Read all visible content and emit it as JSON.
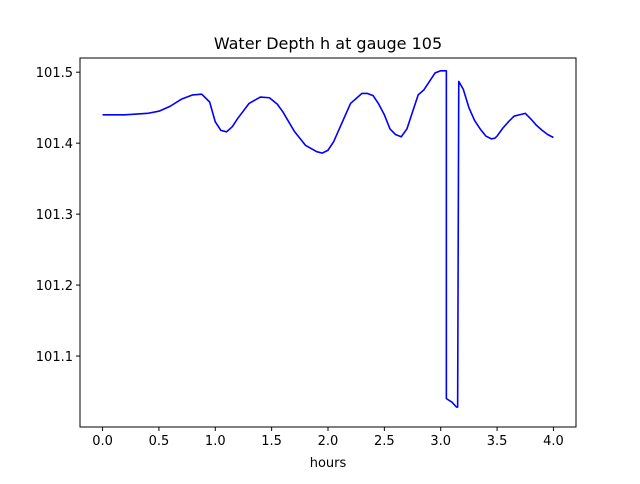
{
  "chart_data": {
    "type": "line",
    "title": "Water Depth h at gauge 105",
    "xlabel": "hours",
    "ylabel": "",
    "xlim": [
      -0.2,
      4.2
    ],
    "ylim": [
      101.0,
      101.52
    ],
    "xticks": [
      0.0,
      0.5,
      1.0,
      1.5,
      2.0,
      2.5,
      3.0,
      3.5,
      4.0
    ],
    "xtick_labels": [
      "0.0",
      "0.5",
      "1.0",
      "1.5",
      "2.0",
      "2.5",
      "3.0",
      "3.5",
      "4.0"
    ],
    "yticks": [
      101.1,
      101.2,
      101.3,
      101.4,
      101.5
    ],
    "ytick_labels": [
      "101.1",
      "101.2",
      "101.3",
      "101.4",
      "101.5"
    ],
    "grid": false,
    "legend": "none",
    "series": [
      {
        "color": "#0000ff",
        "x": [
          0.0,
          0.2,
          0.4,
          0.5,
          0.6,
          0.7,
          0.8,
          0.88,
          0.95,
          1.0,
          1.05,
          1.1,
          1.15,
          1.2,
          1.3,
          1.4,
          1.48,
          1.55,
          1.6,
          1.7,
          1.8,
          1.9,
          1.95,
          2.0,
          2.05,
          2.1,
          2.2,
          2.3,
          2.35,
          2.4,
          2.45,
          2.5,
          2.55,
          2.6,
          2.65,
          2.7,
          2.75,
          2.8,
          2.85,
          2.9,
          2.95,
          3.0,
          3.04,
          3.05,
          3.05,
          3.1,
          3.14,
          3.15,
          3.16,
          3.2,
          3.25,
          3.3,
          3.35,
          3.4,
          3.45,
          3.48,
          3.5,
          3.55,
          3.6,
          3.65,
          3.7,
          3.75,
          3.8,
          3.85,
          3.9,
          3.95,
          4.0
        ],
        "y": [
          101.44,
          101.44,
          101.442,
          101.445,
          101.452,
          101.462,
          101.468,
          101.469,
          101.458,
          101.43,
          101.418,
          101.416,
          101.423,
          101.435,
          101.456,
          101.465,
          101.464,
          101.455,
          101.444,
          101.417,
          101.397,
          101.388,
          101.386,
          101.39,
          101.402,
          101.42,
          101.456,
          101.47,
          101.47,
          101.467,
          101.455,
          101.44,
          101.42,
          101.412,
          101.409,
          101.42,
          101.444,
          101.468,
          101.475,
          101.487,
          101.499,
          101.502,
          101.502,
          101.502,
          101.04,
          101.035,
          101.028,
          101.028,
          101.487,
          101.476,
          101.45,
          101.432,
          101.42,
          101.41,
          101.406,
          101.407,
          101.41,
          101.421,
          101.43,
          101.438,
          101.44,
          101.442,
          101.434,
          101.425,
          101.418,
          101.412,
          101.408
        ]
      }
    ]
  }
}
